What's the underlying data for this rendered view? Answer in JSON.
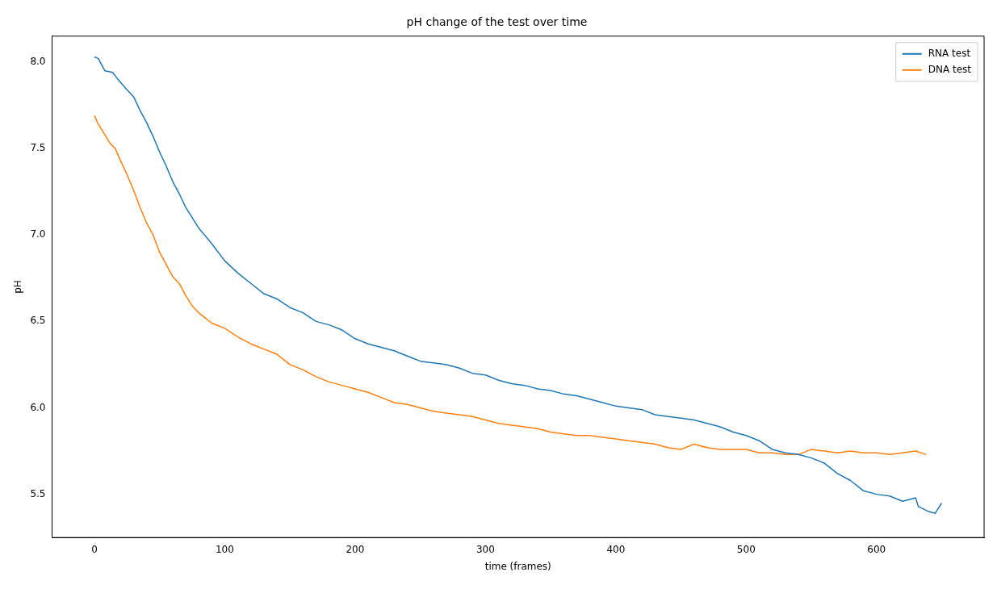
{
  "chart_data": {
    "type": "line",
    "title": "pH change of the test over time",
    "xlabel": "time (frames)",
    "ylabel": "pH",
    "xlim": [
      -32.5,
      682.5
    ],
    "ylim": [
      5.25,
      8.15
    ],
    "xticks": [
      0,
      100,
      200,
      300,
      400,
      500,
      600
    ],
    "yticks": [
      5.5,
      {
        "value": 6,
        "label": "6.0"
      },
      6.5,
      {
        "value": 7,
        "label": "7.0"
      },
      7.5,
      {
        "value": 8,
        "label": "8.0"
      }
    ],
    "grid": false,
    "legend": "top right",
    "marker": "none",
    "line_style": "solid",
    "series": [
      {
        "name": "RNA test",
        "color": "#1f77b4",
        "x": [
          0,
          3,
          8,
          14,
          18,
          25,
          30,
          35,
          40,
          45,
          50,
          55,
          60,
          65,
          70,
          80,
          90,
          100,
          110,
          120,
          130,
          140,
          150,
          160,
          170,
          180,
          190,
          200,
          210,
          220,
          230,
          240,
          250,
          260,
          270,
          280,
          290,
          300,
          310,
          320,
          330,
          340,
          350,
          360,
          370,
          380,
          390,
          400,
          410,
          420,
          430,
          440,
          450,
          460,
          470,
          480,
          490,
          500,
          510,
          520,
          530,
          540,
          550,
          560,
          570,
          580,
          590,
          600,
          610,
          620,
          630,
          632,
          640,
          645,
          650
        ],
        "values": [
          8.03,
          8.02,
          7.95,
          7.94,
          7.9,
          7.84,
          7.8,
          7.72,
          7.65,
          7.57,
          7.48,
          7.4,
          7.31,
          7.24,
          7.16,
          7.04,
          6.95,
          6.85,
          6.78,
          6.72,
          6.66,
          6.63,
          6.58,
          6.55,
          6.5,
          6.48,
          6.45,
          6.4,
          6.37,
          6.35,
          6.33,
          6.3,
          6.27,
          6.26,
          6.25,
          6.23,
          6.2,
          6.19,
          6.16,
          6.14,
          6.13,
          6.11,
          6.1,
          6.08,
          6.07,
          6.05,
          6.03,
          6.01,
          6,
          5.99,
          5.96,
          5.95,
          5.94,
          5.93,
          5.91,
          5.89,
          5.86,
          5.84,
          5.81,
          5.76,
          5.74,
          5.73,
          5.71,
          5.68,
          5.62,
          5.58,
          5.52,
          5.5,
          5.49,
          5.46,
          5.48,
          5.43,
          5.4,
          5.39,
          5.45
        ]
      },
      {
        "name": "DNA test",
        "color": "#ff7f0e",
        "x": [
          0,
          3,
          8,
          12,
          16,
          20,
          25,
          30,
          35,
          40,
          45,
          50,
          55,
          60,
          65,
          70,
          75,
          80,
          90,
          100,
          110,
          120,
          130,
          140,
          150,
          160,
          170,
          180,
          190,
          200,
          210,
          220,
          230,
          240,
          250,
          260,
          270,
          280,
          290,
          300,
          310,
          320,
          330,
          340,
          350,
          360,
          370,
          380,
          390,
          400,
          410,
          420,
          430,
          440,
          450,
          460,
          470,
          480,
          490,
          500,
          510,
          520,
          530,
          540,
          550,
          560,
          570,
          580,
          590,
          600,
          610,
          620,
          630,
          638
        ],
        "values": [
          7.69,
          7.64,
          7.58,
          7.53,
          7.5,
          7.43,
          7.35,
          7.26,
          7.16,
          7.07,
          7,
          6.9,
          6.83,
          6.76,
          6.72,
          6.65,
          6.59,
          6.55,
          6.49,
          6.46,
          6.41,
          6.37,
          6.34,
          6.31,
          6.25,
          6.22,
          6.18,
          6.15,
          6.13,
          6.11,
          6.09,
          6.06,
          6.03,
          6.02,
          6,
          5.98,
          5.97,
          5.96,
          5.95,
          5.93,
          5.91,
          5.9,
          5.89,
          5.88,
          5.86,
          5.85,
          5.84,
          5.84,
          5.83,
          5.82,
          5.81,
          5.8,
          5.79,
          5.77,
          5.76,
          5.79,
          5.77,
          5.76,
          5.76,
          5.76,
          5.74,
          5.74,
          5.73,
          5.73,
          5.76,
          5.75,
          5.74,
          5.75,
          5.74,
          5.74,
          5.73,
          5.74,
          5.75,
          5.73
        ]
      }
    ]
  }
}
